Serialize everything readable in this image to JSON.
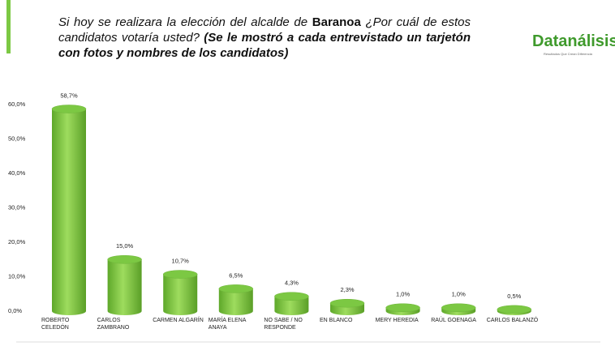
{
  "header": {
    "title_parts": [
      "Si hoy se realizara la elección del alcalde de ",
      "Baranoa",
      " ¿Por cuál de estos candidatos votaría usted? ",
      "(Se le mostró a cada entrevistado un tarjetón con fotos y nombres de los candidatos)"
    ],
    "logo": "Datanálisis",
    "tagline": "Resultados Que Crean Diferencia"
  },
  "chart_data": {
    "type": "bar",
    "categories": [
      "ROBERTO CELEDÓN",
      "CARLOS ZAMBRANO",
      "CARMEN ALGARÍN",
      "MARÍA ELENA ANAYA",
      "NO SABE / NO RESPONDE",
      "EN BLANCO",
      "MERY HEREDIA",
      "RAÚL GOENAGA",
      "CARLOS BALANZÓ"
    ],
    "values": [
      58.7,
      15.0,
      10.7,
      6.5,
      4.3,
      2.3,
      1.0,
      1.0,
      0.5
    ],
    "value_labels": [
      "58,7%",
      "15,0%",
      "10,7%",
      "6,5%",
      "4,3%",
      "2,3%",
      "1,0%",
      "1,0%",
      "0,5%"
    ],
    "color": "#7cc843",
    "ylim": [
      0,
      60
    ],
    "yticks": [
      {
        "value": 0,
        "label": "0,0%"
      },
      {
        "value": 10,
        "label": "10,0%"
      },
      {
        "value": 20,
        "label": "20,0%"
      },
      {
        "value": 30,
        "label": "30,0%"
      },
      {
        "value": 40,
        "label": "40,0%"
      },
      {
        "value": 50,
        "label": "50,0%"
      },
      {
        "value": 60,
        "label": "60,0%"
      }
    ]
  }
}
